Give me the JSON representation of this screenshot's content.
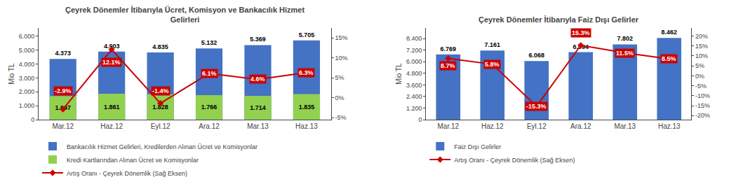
{
  "chart_data": [
    {
      "type": "bar",
      "title": "Çeyrek Dönemler İtibarıyla Ücret, Komisyon ve Bankacılık Hizmet\nGelirleri",
      "categories": [
        "Mar.12",
        "Haz.12",
        "Eyl.12",
        "Ara.12",
        "Mar.13",
        "Haz.13"
      ],
      "ylabel": "Mio TL",
      "ylim": [
        0,
        6600
      ],
      "yticks": [
        0,
        {
          "value": 1000,
          "label": "1.000"
        },
        {
          "value": 2000,
          "label": "2.000"
        },
        {
          "value": 3000,
          "label": "3.000"
        },
        {
          "value": 4000,
          "label": "4.000"
        },
        {
          "value": 5000,
          "label": "5.000"
        },
        {
          "value": 6000,
          "label": "6.000"
        }
      ],
      "y2lim": [
        -5.5,
        17.5
      ],
      "y2ticks": [
        {
          "value": -5,
          "label": "-5%"
        },
        {
          "value": 0,
          "label": "0%"
        },
        {
          "value": 5,
          "label": "5%"
        },
        {
          "value": 10,
          "label": "10%"
        },
        {
          "value": 15,
          "label": "15%"
        }
      ],
      "grid": false,
      "legend": "bottom",
      "data_labels": true,
      "series": [
        {
          "name": "Bankacılık Hizmet Gelirleri, Kredilerden Alınan Ücret ve Komisyonlar",
          "color": "#4472C4",
          "values": [
            4373,
            4903,
            4835,
            5132,
            5369,
            5705
          ],
          "value_labels": [
            "4.373",
            "4.903",
            "4.835",
            "5.132",
            "5.369",
            "5.705"
          ]
        },
        {
          "name": "Kredi Kartlarından Alınan Ücret ve Komisyonlar",
          "color": "#92D050",
          "values": [
            1697,
            1861,
            1828,
            1766,
            1714,
            1835
          ],
          "value_labels": [
            "1.697",
            "1.861",
            "1.828",
            "1.766",
            "1.714",
            "1.835"
          ]
        },
        {
          "name": "Artış Oranı - Çeyrek Dönemlik (Sağ Eksen)",
          "type": "line",
          "axis": "y2",
          "color": "#CC0000",
          "marker": "diamond",
          "values": [
            -2.9,
            12.1,
            -1.4,
            6.1,
            4.6,
            6.3
          ],
          "value_labels": [
            "-2.9%",
            "12.1%",
            "-1.4%",
            "6.1%",
            "4.6%",
            "6.3%"
          ]
        }
      ]
    },
    {
      "type": "bar",
      "title": "Çeyrek Dönemler İtibarıyla Faiz Dışı Gelirler",
      "categories": [
        "Mar.12",
        "Haz.12",
        "Eyl.12",
        "Ara.12",
        "Mar.13",
        "Haz.13"
      ],
      "ylabel": "Mio TL",
      "ylim": [
        0,
        9500
      ],
      "yticks": [
        0,
        {
          "value": 1200,
          "label": "1.200"
        },
        {
          "value": 2400,
          "label": "2.400"
        },
        {
          "value": 3600,
          "label": "3.600"
        },
        {
          "value": 4800,
          "label": "4.800"
        },
        {
          "value": 6000,
          "label": "6.000"
        },
        {
          "value": 7200,
          "label": "7.200"
        },
        {
          "value": 8400,
          "label": "8.400"
        }
      ],
      "y2lim": [
        -22,
        24
      ],
      "y2ticks": [
        {
          "value": -20,
          "label": "-20%"
        },
        {
          "value": -15,
          "label": "-15%"
        },
        {
          "value": -10,
          "label": "-10%"
        },
        {
          "value": -5,
          "label": "-5%"
        },
        {
          "value": 0,
          "label": "0%"
        },
        {
          "value": 5,
          "label": "5%"
        },
        {
          "value": 10,
          "label": "10%"
        },
        {
          "value": 15,
          "label": "15%"
        },
        {
          "value": 20,
          "label": "20%"
        }
      ],
      "grid": false,
      "legend": "bottom",
      "data_labels": true,
      "series": [
        {
          "name": "Faiz Dışı Gelirler",
          "color": "#4472C4",
          "values": [
            6769,
            7161,
            6068,
            6994,
            7802,
            8462
          ],
          "value_labels": [
            "6.769",
            "7.161",
            "6.068",
            "6.994",
            "7.802",
            "8.462"
          ]
        },
        {
          "name": "Artış Oranı - Çeyrek Dönemlik (Sağ Eksen)",
          "type": "line",
          "axis": "y2",
          "color": "#CC0000",
          "marker": "diamond",
          "values": [
            8.7,
            5.8,
            -15.3,
            15.3,
            11.5,
            8.5
          ],
          "value_labels": [
            "8.7%",
            "5.8%",
            "-15.3%",
            "15.3%",
            "11.5%",
            "8.5%"
          ]
        }
      ]
    }
  ]
}
